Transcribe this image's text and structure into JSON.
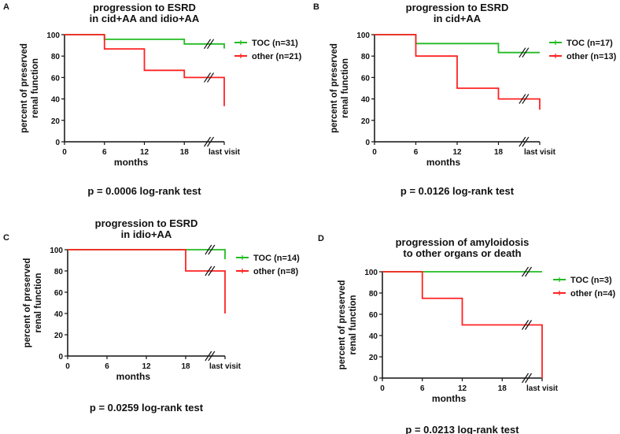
{
  "chart_data": [
    {
      "type": "line",
      "panel_label": "A",
      "title": [
        "progression to ESRD",
        "in cid+AA and idio+AA"
      ],
      "xlabel": "months",
      "ylabel": [
        "percent of preserved",
        "renal function"
      ],
      "x_ticks": [
        "0",
        "6",
        "12",
        "18",
        "last visit"
      ],
      "x_tick_values": [
        0,
        6,
        12,
        18,
        24
      ],
      "y_ticks": [
        "0",
        "20",
        "40",
        "60",
        "80",
        "100"
      ],
      "ylim": [
        0,
        100
      ],
      "footer": "p = 0.0006 log-rank test",
      "series": [
        {
          "name": "TOC (n=31)",
          "color": "#22bb22",
          "steps": [
            [
              0,
              100
            ],
            [
              6,
              95.7
            ],
            [
              18,
              91.3
            ],
            [
              24,
              87
            ]
          ]
        },
        {
          "name": "other (n=21)",
          "color": "#ff2222",
          "steps": [
            [
              0,
              100
            ],
            [
              6,
              86.7
            ],
            [
              12,
              66.7
            ],
            [
              18,
              60
            ],
            [
              24,
              33.3
            ]
          ]
        }
      ]
    },
    {
      "type": "line",
      "panel_label": "B",
      "title": [
        "progression to ESRD",
        "in cid+AA"
      ],
      "xlabel": "months",
      "ylabel": [
        "percent of preserved",
        "renal function"
      ],
      "x_ticks": [
        "0",
        "6",
        "12",
        "18",
        "last visit"
      ],
      "x_tick_values": [
        0,
        6,
        12,
        18,
        24
      ],
      "y_ticks": [
        "0",
        "20",
        "40",
        "60",
        "80",
        "100"
      ],
      "ylim": [
        0,
        100
      ],
      "footer": "p = 0.0126 log-rank test",
      "series": [
        {
          "name": "TOC (n=17)",
          "color": "#22bb22",
          "steps": [
            [
              0,
              100
            ],
            [
              6,
              91.7
            ],
            [
              18,
              83.3
            ],
            [
              24,
              83.3
            ]
          ]
        },
        {
          "name": "other (n=13)",
          "color": "#ff2222",
          "steps": [
            [
              0,
              100
            ],
            [
              6,
              80
            ],
            [
              12,
              50
            ],
            [
              18,
              40
            ],
            [
              24,
              30
            ]
          ]
        }
      ]
    },
    {
      "type": "line",
      "panel_label": "C",
      "title": [
        "progression to ESRD",
        "in idio+AA"
      ],
      "xlabel": "months",
      "ylabel": [
        "percent of preserved",
        "renal function"
      ],
      "x_ticks": [
        "0",
        "6",
        "12",
        "18",
        "last visit"
      ],
      "x_tick_values": [
        0,
        6,
        12,
        18,
        24
      ],
      "y_ticks": [
        "0",
        "20",
        "40",
        "60",
        "80",
        "100"
      ],
      "ylim": [
        0,
        100
      ],
      "footer": "p = 0.0259 log-rank test",
      "series": [
        {
          "name": "TOC (n=14)",
          "color": "#22bb22",
          "steps": [
            [
              0,
              100
            ],
            [
              24,
              91
            ]
          ]
        },
        {
          "name": "other (n=8)",
          "color": "#ff2222",
          "steps": [
            [
              0,
              100
            ],
            [
              18,
              80
            ],
            [
              24,
              40
            ]
          ]
        }
      ]
    },
    {
      "type": "line",
      "panel_label": "D",
      "title": [
        "progression of amyloidosis",
        "to other organs or death"
      ],
      "xlabel": "months",
      "ylabel": [
        "percent of preserved",
        "renal function"
      ],
      "x_ticks": [
        "0",
        "6",
        "12",
        "18",
        "last visit"
      ],
      "x_tick_values": [
        0,
        6,
        12,
        18,
        24
      ],
      "y_ticks": [
        "0",
        "20",
        "40",
        "60",
        "80",
        "100"
      ],
      "ylim": [
        0,
        100
      ],
      "footer": "p = 0.0213 log-rank test",
      "series": [
        {
          "name": "TOC (n=3)",
          "color": "#22bb22",
          "steps": [
            [
              0,
              100
            ],
            [
              24,
              100
            ]
          ]
        },
        {
          "name": "other (n=4)",
          "color": "#ff2222",
          "steps": [
            [
              0,
              100
            ],
            [
              6,
              75
            ],
            [
              12,
              50
            ],
            [
              24,
              0
            ]
          ]
        }
      ]
    }
  ]
}
